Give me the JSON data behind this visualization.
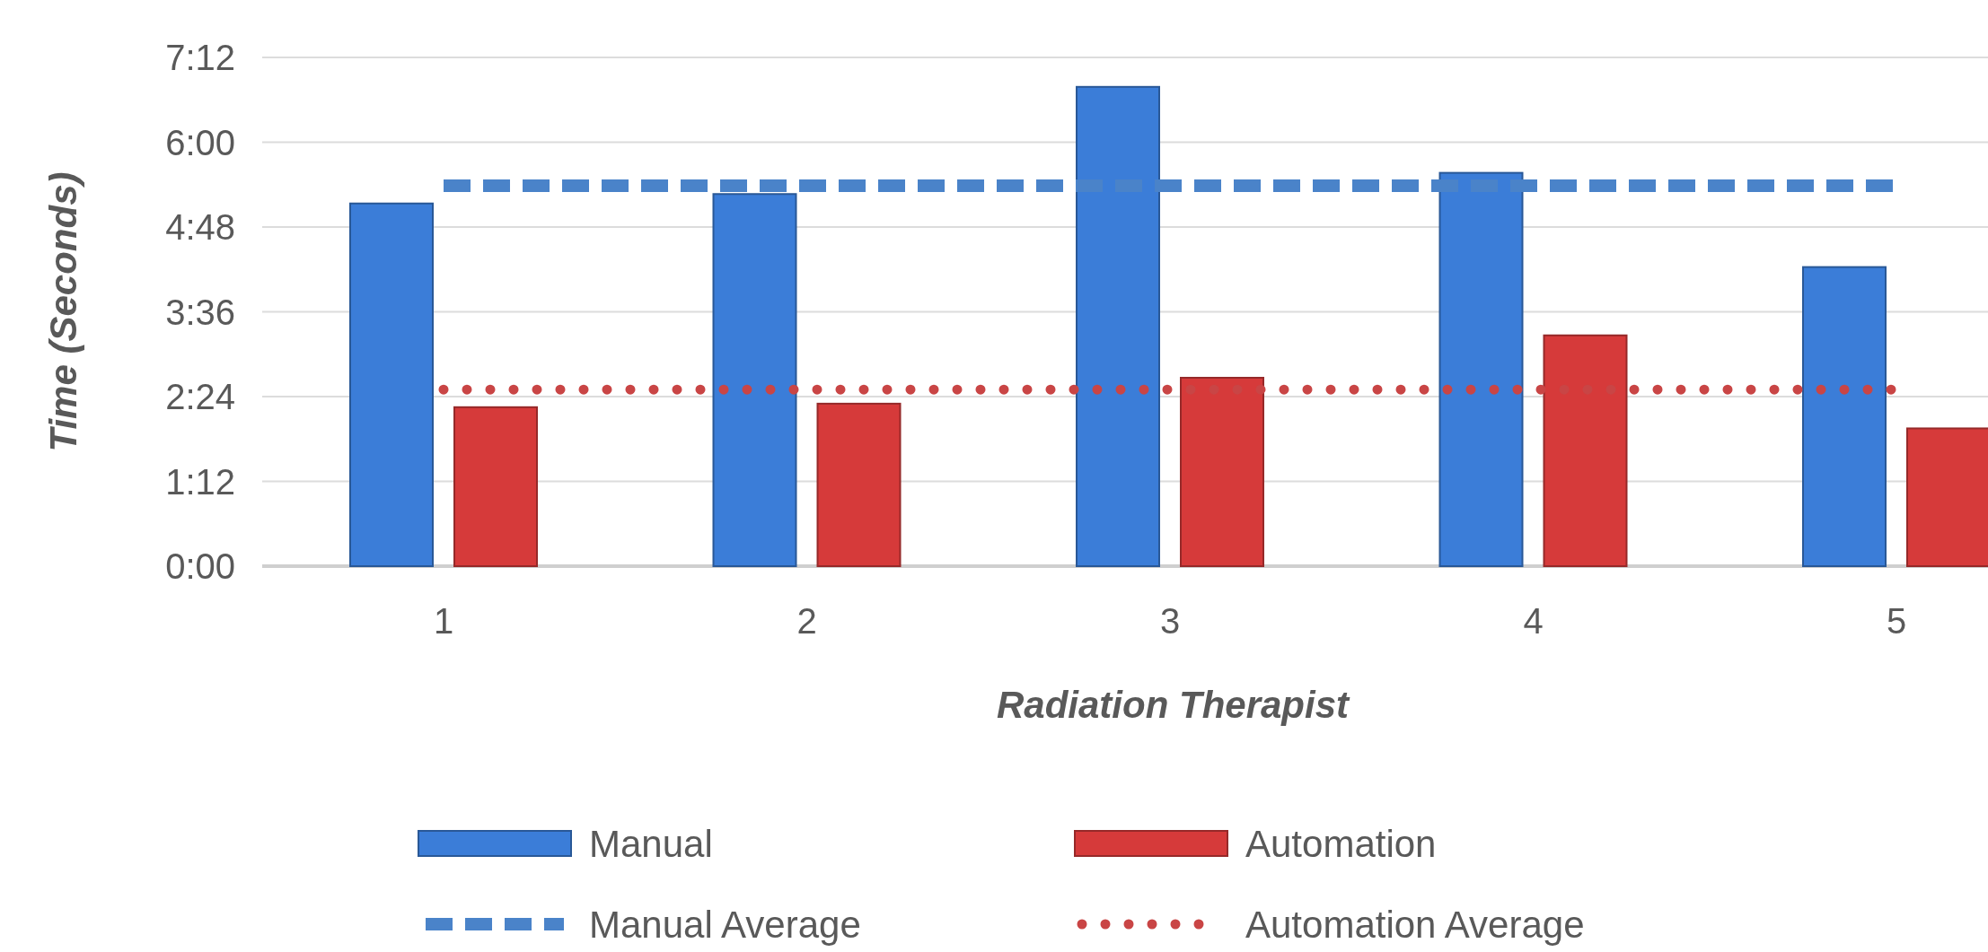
{
  "chart_data": {
    "type": "bar",
    "xlabel": "Radiation Therapist",
    "ylabel": "Time (Seconds)",
    "categories": [
      "1",
      "2",
      "3",
      "4",
      "5"
    ],
    "series": [
      {
        "name": "Manual",
        "color": "#3b7dd8",
        "values": [
          308,
          316,
          407,
          334,
          254
        ]
      },
      {
        "name": "Automation",
        "color": "#d63a3a",
        "values": [
          135,
          138,
          160,
          196,
          117
        ]
      },
      {
        "name": "Manual Average",
        "type": "line",
        "line_style": "dashed",
        "color": "#4a83c9",
        "values": [
          323,
          323,
          323,
          323,
          323
        ]
      },
      {
        "name": "Automation Average",
        "type": "line",
        "line_style": "dotted",
        "color": "#c94545",
        "values": [
          150,
          150,
          150,
          150,
          150
        ]
      }
    ],
    "ylim": [
      0,
      432
    ],
    "yticks": [
      {
        "value": 0,
        "label": "0:00"
      },
      {
        "value": 72,
        "label": "1:12"
      },
      {
        "value": 144,
        "label": "2:24"
      },
      {
        "value": 216,
        "label": "3:36"
      },
      {
        "value": 288,
        "label": "4:48"
      },
      {
        "value": 360,
        "label": "6:00"
      },
      {
        "value": 432,
        "label": "7:12"
      }
    ],
    "grid": "y",
    "legend": "bottom"
  }
}
